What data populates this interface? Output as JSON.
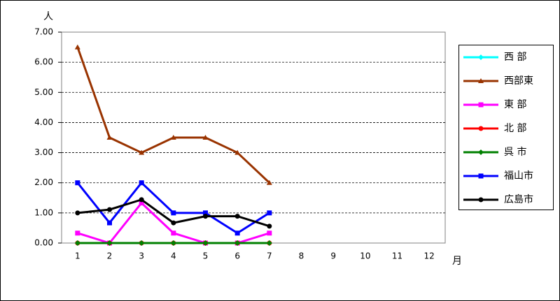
{
  "chart_data": {
    "type": "line",
    "ylabel": "人",
    "xlabel": "月",
    "categories": [
      "1",
      "2",
      "3",
      "4",
      "5",
      "6",
      "7",
      "8",
      "9",
      "10",
      "11",
      "12"
    ],
    "ylim": [
      0,
      7
    ],
    "yticks": [
      {
        "value": 0,
        "label": "0.00"
      },
      {
        "value": 1,
        "label": "1.00"
      },
      {
        "value": 2,
        "label": "2.00"
      },
      {
        "value": 3,
        "label": "3.00"
      },
      {
        "value": 4,
        "label": "4.00"
      },
      {
        "value": 5,
        "label": "5.00"
      },
      {
        "value": 6,
        "label": "6.00"
      },
      {
        "value": 7,
        "label": "7.00"
      }
    ],
    "grid": true,
    "legend": "right",
    "series": [
      {
        "name": "西 部",
        "color": "#00ffff",
        "marker": "diamond",
        "values": [
          0,
          0,
          0,
          0,
          0,
          0,
          0,
          null,
          null,
          null,
          null,
          null
        ]
      },
      {
        "name": "西部東",
        "color": "#993300",
        "marker": "triangle",
        "values": [
          6.5,
          3.5,
          3,
          3.5,
          3.5,
          3,
          2,
          null,
          null,
          null,
          null,
          null
        ]
      },
      {
        "name": "東 部",
        "color": "#ff00ff",
        "marker": "square",
        "values": [
          0.33,
          0,
          1.33,
          0.33,
          0,
          0,
          0.33,
          null,
          null,
          null,
          null,
          null
        ]
      },
      {
        "name": "北 部",
        "color": "#ff0000",
        "marker": "circle",
        "values": [
          0,
          0,
          0,
          0,
          0,
          0,
          0,
          null,
          null,
          null,
          null,
          null
        ]
      },
      {
        "name": "呉 市",
        "color": "#008000",
        "marker": "diamond",
        "values": [
          0,
          0,
          0,
          0,
          0,
          0,
          0,
          null,
          null,
          null,
          null,
          null
        ]
      },
      {
        "name": "福山市",
        "color": "#0000ff",
        "marker": "square",
        "values": [
          2,
          0.67,
          2,
          1,
          1,
          0.33,
          1,
          null,
          null,
          null,
          null,
          null
        ]
      },
      {
        "name": "広島市",
        "color": "#000000",
        "marker": "circle",
        "values": [
          1,
          1.11,
          1.44,
          0.67,
          0.89,
          0.89,
          0.56,
          null,
          null,
          null,
          null,
          null
        ]
      }
    ]
  }
}
